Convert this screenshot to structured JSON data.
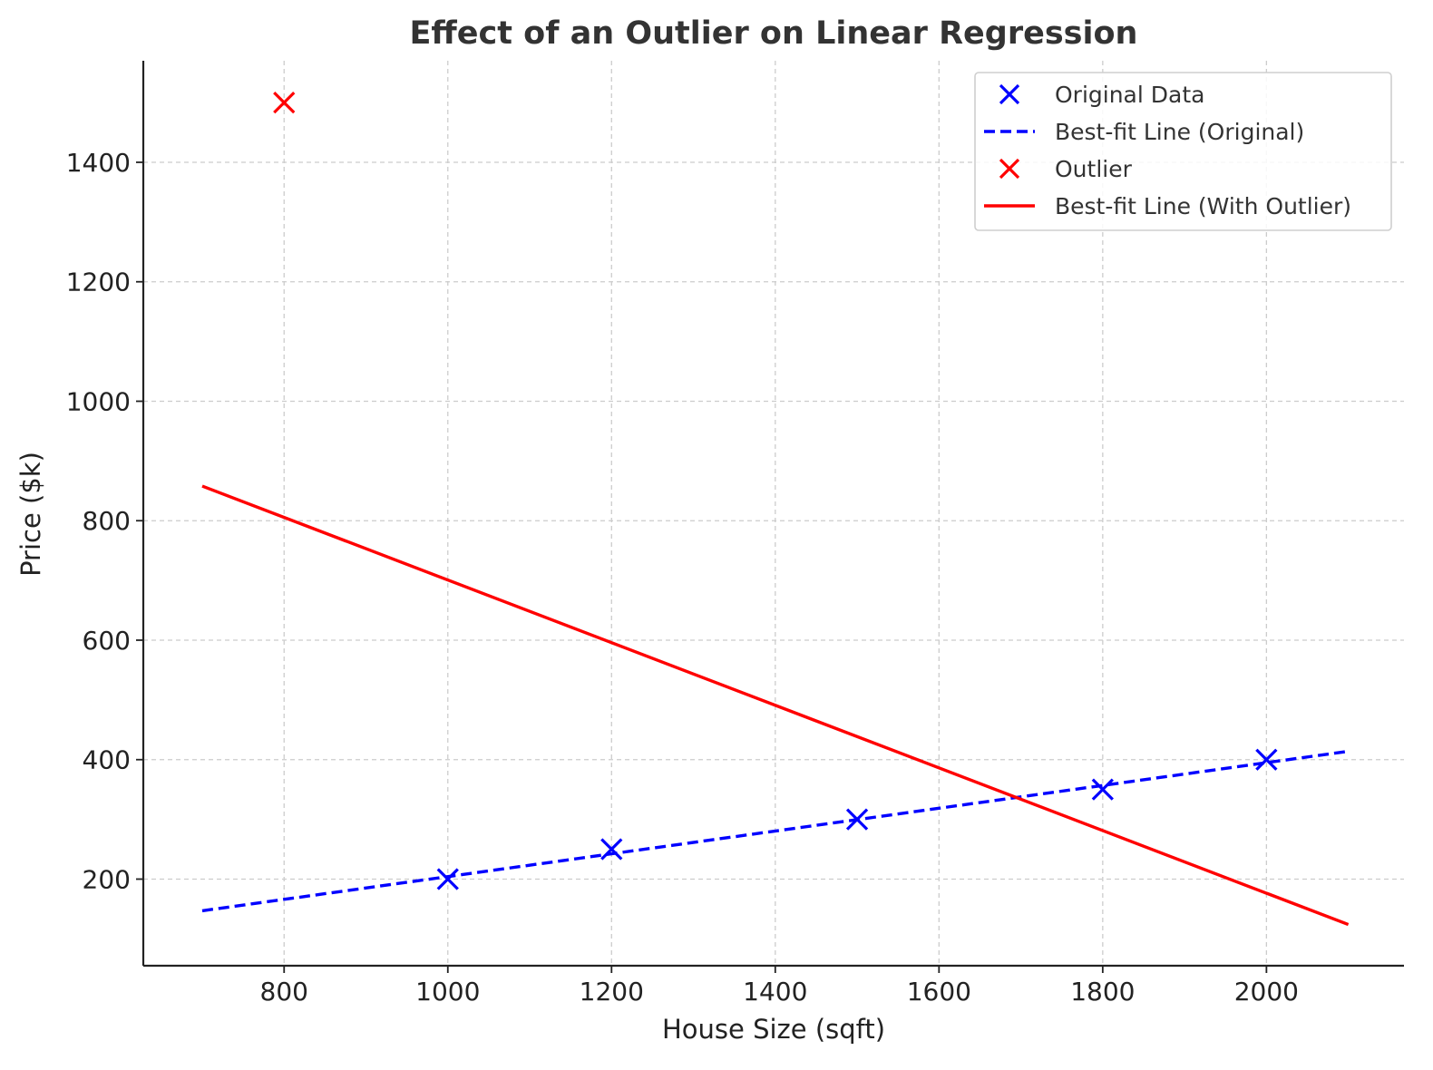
{
  "chart_data": {
    "type": "scatter",
    "title": "Effect of an Outlier on Linear Regression",
    "xlabel": "House Size (sqft)",
    "ylabel": "Price ($k)",
    "xlim": [
      628,
      2168
    ],
    "ylim": [
      55,
      1570
    ],
    "xticks": [
      800,
      1000,
      1200,
      1400,
      1600,
      1800,
      2000
    ],
    "yticks": [
      200,
      400,
      600,
      800,
      1000,
      1200,
      1400
    ],
    "grid": true,
    "legend_position": "top-right",
    "series": [
      {
        "name": "Original Data",
        "kind": "scatter",
        "marker": "x",
        "color": "#0000ff",
        "points": [
          [
            1000,
            200
          ],
          [
            1200,
            250
          ],
          [
            1500,
            300
          ],
          [
            1800,
            350
          ],
          [
            2000,
            400
          ]
        ]
      },
      {
        "name": "Best-fit Line (Original)",
        "kind": "line",
        "style": "dashed",
        "color": "#0000ff",
        "points": [
          [
            700,
            147
          ],
          [
            2100,
            414
          ]
        ]
      },
      {
        "name": "Outlier",
        "kind": "scatter",
        "marker": "x",
        "color": "#ff0000",
        "points": [
          [
            800,
            1500
          ]
        ]
      },
      {
        "name": "Best-fit Line (With Outlier)",
        "kind": "line",
        "style": "solid",
        "color": "#ff0000",
        "points": [
          [
            700,
            858
          ],
          [
            2100,
            124
          ]
        ]
      }
    ]
  }
}
